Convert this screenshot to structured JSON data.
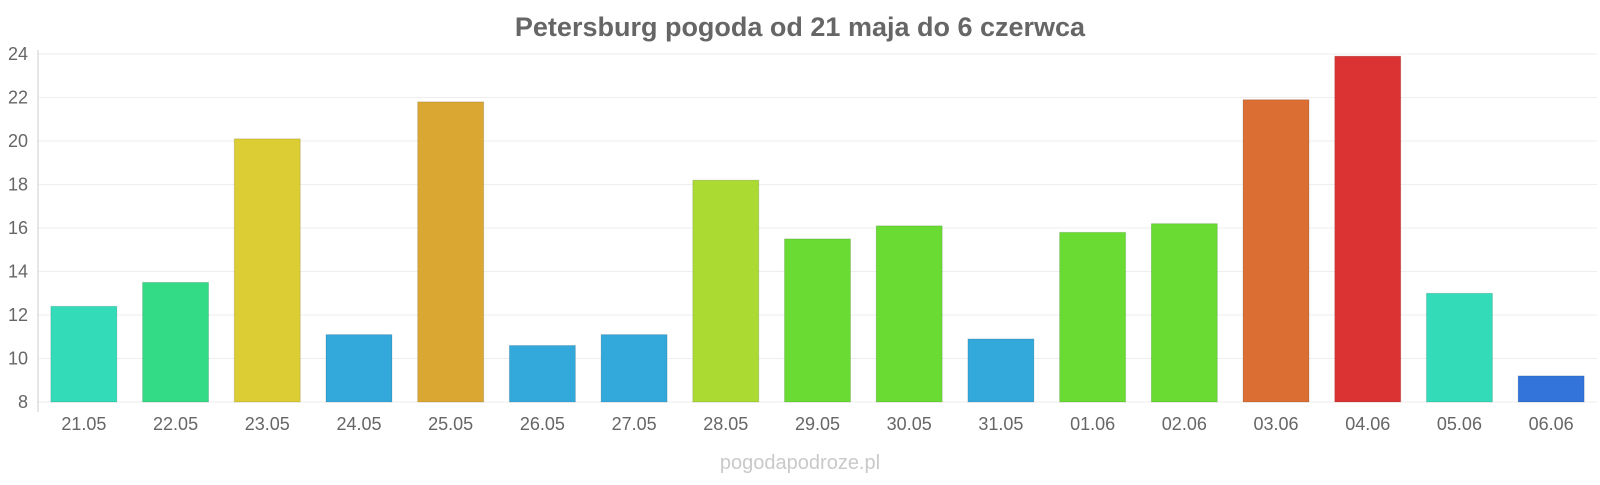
{
  "chart_data": {
    "type": "bar",
    "title": "Petersburg pogoda od 21 maja do 6 czerwca",
    "xlabel": "",
    "ylabel": "",
    "ylim": [
      8,
      24
    ],
    "yticks": [
      8,
      10,
      12,
      14,
      16,
      18,
      20,
      22,
      24
    ],
    "grid": true,
    "legend": "none",
    "categories": [
      "21.05",
      "22.05",
      "23.05",
      "24.05",
      "25.05",
      "26.05",
      "27.05",
      "28.05",
      "29.05",
      "30.05",
      "31.05",
      "01.06",
      "02.06",
      "03.06",
      "04.06",
      "05.06",
      "06.06"
    ],
    "values": [
      12.4,
      13.5,
      20.1,
      11.1,
      21.8,
      10.6,
      11.1,
      18.2,
      15.5,
      16.1,
      10.9,
      15.8,
      16.2,
      21.9,
      23.9,
      13.0,
      9.2
    ],
    "colors": [
      "#33dbb9",
      "#33db87",
      "#dbcd33",
      "#33a8db",
      "#dba733",
      "#33a8db",
      "#33a8db",
      "#abdb33",
      "#69db33",
      "#69db33",
      "#33a8db",
      "#69db33",
      "#69db33",
      "#db6f33",
      "#db3333",
      "#33dbb9",
      "#3374db"
    ]
  },
  "watermark": "pogodapodroze.pl"
}
